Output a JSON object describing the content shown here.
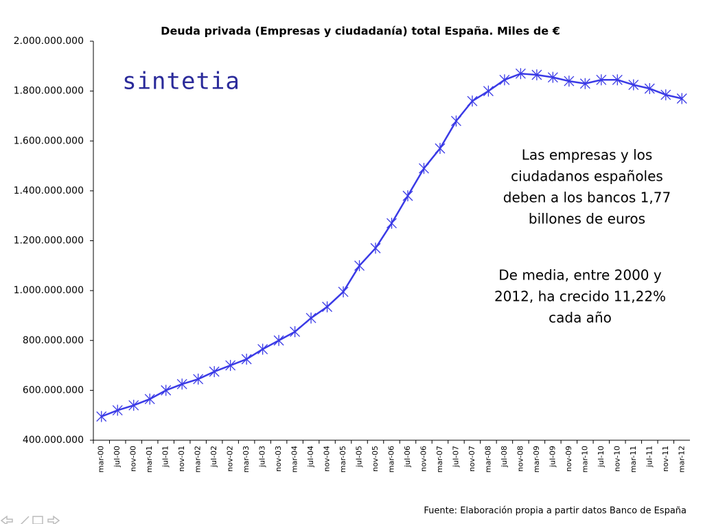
{
  "chart_data": {
    "type": "line",
    "title": "Deuda privada (Empresas y ciudadanía) total España. Miles de €",
    "logo": "sintetia",
    "annotations": [
      [
        "Las empresas y los",
        "ciudadanos españoles",
        "deben a los bancos 1,77",
        "billones de euros"
      ],
      [
        "De media, entre 2000 y",
        "2012, ha crecido 11,22%",
        "cada año"
      ]
    ],
    "source": "Fuente: Elaboración propia a partir datos Banco de España",
    "categories": [
      "mar-00",
      "jul-00",
      "nov-00",
      "mar-01",
      "jul-01",
      "nov-01",
      "mar-02",
      "jul-02",
      "nov-02",
      "mar-03",
      "jul-03",
      "nov-03",
      "mar-04",
      "jul-04",
      "nov-04",
      "mar-05",
      "jul-05",
      "nov-05",
      "mar-06",
      "jul-06",
      "nov-06",
      "mar-07",
      "jul-07",
      "nov-07",
      "mar-08",
      "jul-08",
      "nov-08",
      "mar-09",
      "jul-09",
      "nov-09",
      "mar-10",
      "jul-10",
      "nov-10",
      "mar-11",
      "jul-11",
      "nov-11",
      "mar-12"
    ],
    "series": [
      {
        "color": "#3a3ae6",
        "values": [
          495000000,
          520000000,
          540000000,
          565000000,
          600000000,
          625000000,
          645000000,
          675000000,
          700000000,
          725000000,
          765000000,
          800000000,
          835000000,
          890000000,
          935000000,
          995000000,
          1100000000,
          1170000000,
          1270000000,
          1380000000,
          1490000000,
          1570000000,
          1680000000,
          1760000000,
          1800000000,
          1845000000,
          1870000000,
          1865000000,
          1855000000,
          1840000000,
          1830000000,
          1845000000,
          1845000000,
          1825000000,
          1810000000,
          1785000000,
          1770000000
        ]
      }
    ],
    "ylim": [
      400000000,
      2000000000
    ],
    "yticks": [
      {
        "value": 400000000,
        "label": "400.000.000"
      },
      {
        "value": 600000000,
        "label": "600.000.000"
      },
      {
        "value": 800000000,
        "label": "800.000.000"
      },
      {
        "value": 1000000000,
        "label": "1.000.000.000"
      },
      {
        "value": 1200000000,
        "label": "1.200.000.000"
      },
      {
        "value": 1400000000,
        "label": "1.400.000.000"
      },
      {
        "value": 1600000000,
        "label": "1.600.000.000"
      },
      {
        "value": 1800000000,
        "label": "1.800.000.000"
      },
      {
        "value": 2000000000,
        "label": "2.000.000.000"
      }
    ]
  }
}
